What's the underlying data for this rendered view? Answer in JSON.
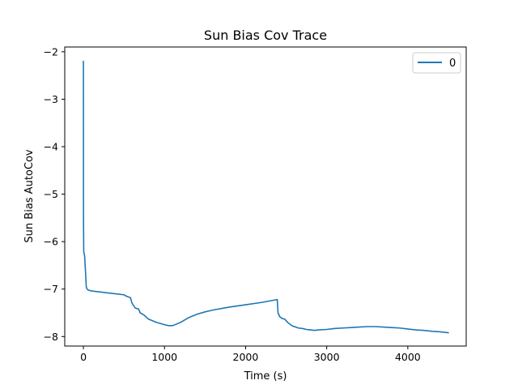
{
  "chart_data": {
    "type": "line",
    "title": "Sun Bias Cov Trace",
    "xlabel": "Time (s)",
    "ylabel": "Sun Bias AutoCov",
    "xlim": [
      -230,
      4720
    ],
    "ylim": [
      -8.2,
      -1.9
    ],
    "xticks": [
      0,
      1000,
      2000,
      3000,
      4000
    ],
    "yticks": [
      -8,
      -7,
      -6,
      -5,
      -4,
      -3,
      -2
    ],
    "tick_labels_x": [
      "0",
      "1000",
      "2000",
      "3000",
      "4000"
    ],
    "tick_labels_y": [
      "−8",
      "−7",
      "−6",
      "−5",
      "−4",
      "−3",
      "−2"
    ],
    "grid": false,
    "legend_position": "top-right",
    "series": [
      {
        "name": "0",
        "color": "#1f77b4",
        "x": [
          0,
          1,
          4,
          8,
          15,
          25,
          35,
          45,
          60,
          100,
          200,
          300,
          400,
          500,
          530,
          580,
          600,
          640,
          680,
          700,
          750,
          800,
          900,
          1000,
          1050,
          1100,
          1200,
          1300,
          1400,
          1500,
          1600,
          1800,
          2000,
          2200,
          2390,
          2400,
          2420,
          2450,
          2480,
          2530,
          2580,
          2620,
          2650,
          2700,
          2750,
          2800,
          2850,
          2900,
          3000,
          3100,
          3200,
          3300,
          3400,
          3500,
          3600,
          3700,
          3800,
          3900,
          4000,
          4100,
          4200,
          4300,
          4400,
          4500
        ],
        "y": [
          -2.2,
          -5.5,
          -6.2,
          -6.25,
          -6.3,
          -6.6,
          -6.95,
          -7.0,
          -7.02,
          -7.04,
          -7.06,
          -7.08,
          -7.1,
          -7.12,
          -7.15,
          -7.18,
          -7.3,
          -7.4,
          -7.42,
          -7.5,
          -7.55,
          -7.63,
          -7.7,
          -7.75,
          -7.77,
          -7.77,
          -7.7,
          -7.6,
          -7.53,
          -7.48,
          -7.44,
          -7.38,
          -7.33,
          -7.28,
          -7.22,
          -7.5,
          -7.58,
          -7.62,
          -7.63,
          -7.72,
          -7.78,
          -7.8,
          -7.82,
          -7.83,
          -7.85,
          -7.86,
          -7.87,
          -7.86,
          -7.85,
          -7.83,
          -7.82,
          -7.81,
          -7.8,
          -7.79,
          -7.79,
          -7.8,
          -7.81,
          -7.82,
          -7.84,
          -7.86,
          -7.87,
          -7.89,
          -7.9,
          -7.92
        ]
      }
    ]
  }
}
